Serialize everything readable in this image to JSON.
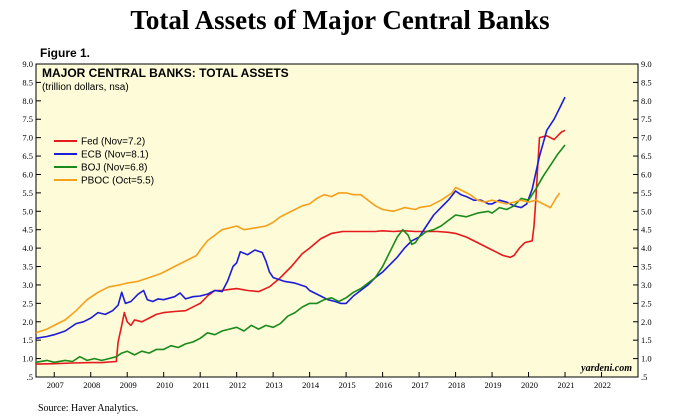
{
  "page": {
    "title": "Total Assets of Major Central Banks",
    "figure_label": "Figure 1.",
    "source": "Source: Haver Analytics."
  },
  "chart_data": {
    "type": "line",
    "title": "MAJOR CENTRAL BANKS: TOTAL ASSETS",
    "subtitle": "(trillion dollars, nsa)",
    "watermark": "yardeni.com",
    "xlabel": "",
    "ylabel": "",
    "x_ticks": [
      "2007",
      "2008",
      "2009",
      "2010",
      "2011",
      "2012",
      "2013",
      "2014",
      "2015",
      "2016",
      "2017",
      "2018",
      "2019",
      "2020",
      "2021",
      "2022"
    ],
    "xlim": [
      2007.0,
      2023.0
    ],
    "y_ticks": [
      ".5",
      "1.0",
      "1.5",
      "2.0",
      "2.5",
      "3.0",
      "3.5",
      "4.0",
      "4.5",
      "5.0",
      "5.5",
      "6.0",
      "6.5",
      "7.0",
      "7.5",
      "8.0",
      "8.5",
      "9.0"
    ],
    "ylim": [
      0.5,
      9.0
    ],
    "legend_position": "left",
    "grid": false,
    "background": "#fdfbd8",
    "series": [
      {
        "name": "Fed (Nov=7.2)",
        "color": "#e41a1c",
        "points": [
          [
            2006.5,
            0.85
          ],
          [
            2007.0,
            0.86
          ],
          [
            2007.5,
            0.88
          ],
          [
            2008.0,
            0.89
          ],
          [
            2008.3,
            0.89
          ],
          [
            2008.7,
            0.92
          ],
          [
            2008.75,
            1.45
          ],
          [
            2008.85,
            1.9
          ],
          [
            2008.92,
            2.25
          ],
          [
            2009.0,
            2.0
          ],
          [
            2009.1,
            1.9
          ],
          [
            2009.2,
            2.05
          ],
          [
            2009.4,
            2.0
          ],
          [
            2009.6,
            2.1
          ],
          [
            2009.8,
            2.2
          ],
          [
            2010.0,
            2.25
          ],
          [
            2010.3,
            2.28
          ],
          [
            2010.6,
            2.3
          ],
          [
            2010.9,
            2.45
          ],
          [
            2011.0,
            2.5
          ],
          [
            2011.2,
            2.7
          ],
          [
            2011.4,
            2.85
          ],
          [
            2011.6,
            2.85
          ],
          [
            2011.8,
            2.88
          ],
          [
            2012.0,
            2.9
          ],
          [
            2012.3,
            2.85
          ],
          [
            2012.6,
            2.82
          ],
          [
            2012.9,
            2.95
          ],
          [
            2013.2,
            3.2
          ],
          [
            2013.5,
            3.5
          ],
          [
            2013.8,
            3.85
          ],
          [
            2014.0,
            4.0
          ],
          [
            2014.3,
            4.25
          ],
          [
            2014.6,
            4.4
          ],
          [
            2014.9,
            4.45
          ],
          [
            2015.2,
            4.45
          ],
          [
            2015.5,
            4.45
          ],
          [
            2015.8,
            4.45
          ],
          [
            2016.0,
            4.47
          ],
          [
            2016.3,
            4.45
          ],
          [
            2016.6,
            4.47
          ],
          [
            2016.9,
            4.45
          ],
          [
            2017.2,
            4.45
          ],
          [
            2017.5,
            4.45
          ],
          [
            2017.8,
            4.43
          ],
          [
            2018.0,
            4.4
          ],
          [
            2018.3,
            4.3
          ],
          [
            2018.6,
            4.15
          ],
          [
            2018.9,
            4.0
          ],
          [
            2019.1,
            3.9
          ],
          [
            2019.3,
            3.8
          ],
          [
            2019.5,
            3.75
          ],
          [
            2019.6,
            3.8
          ],
          [
            2019.75,
            4.0
          ],
          [
            2019.9,
            4.15
          ],
          [
            2020.1,
            4.2
          ],
          [
            2020.15,
            4.6
          ],
          [
            2020.2,
            5.3
          ],
          [
            2020.25,
            6.2
          ],
          [
            2020.3,
            7.0
          ],
          [
            2020.5,
            7.05
          ],
          [
            2020.7,
            6.95
          ],
          [
            2020.9,
            7.15
          ],
          [
            2021.0,
            7.2
          ]
        ]
      },
      {
        "name": "ECB (Nov=8.1)",
        "color": "#1c1cd9",
        "points": [
          [
            2006.5,
            1.55
          ],
          [
            2006.8,
            1.6
          ],
          [
            2007.0,
            1.65
          ],
          [
            2007.3,
            1.75
          ],
          [
            2007.6,
            1.95
          ],
          [
            2007.8,
            2.0
          ],
          [
            2008.0,
            2.1
          ],
          [
            2008.2,
            2.25
          ],
          [
            2008.4,
            2.2
          ],
          [
            2008.6,
            2.3
          ],
          [
            2008.75,
            2.45
          ],
          [
            2008.85,
            2.8
          ],
          [
            2008.95,
            2.5
          ],
          [
            2009.1,
            2.55
          ],
          [
            2009.3,
            2.75
          ],
          [
            2009.45,
            2.85
          ],
          [
            2009.55,
            2.6
          ],
          [
            2009.7,
            2.55
          ],
          [
            2009.85,
            2.62
          ],
          [
            2010.0,
            2.6
          ],
          [
            2010.3,
            2.68
          ],
          [
            2010.45,
            2.78
          ],
          [
            2010.6,
            2.62
          ],
          [
            2010.8,
            2.68
          ],
          [
            2011.0,
            2.7
          ],
          [
            2011.2,
            2.75
          ],
          [
            2011.4,
            2.85
          ],
          [
            2011.6,
            2.82
          ],
          [
            2011.75,
            3.1
          ],
          [
            2011.9,
            3.5
          ],
          [
            2012.0,
            3.6
          ],
          [
            2012.1,
            3.9
          ],
          [
            2012.3,
            3.82
          ],
          [
            2012.5,
            3.95
          ],
          [
            2012.7,
            3.88
          ],
          [
            2012.8,
            3.65
          ],
          [
            2012.9,
            3.35
          ],
          [
            2013.0,
            3.2
          ],
          [
            2013.3,
            3.1
          ],
          [
            2013.6,
            3.05
          ],
          [
            2013.9,
            2.95
          ],
          [
            2014.0,
            2.85
          ],
          [
            2014.3,
            2.7
          ],
          [
            2014.5,
            2.6
          ],
          [
            2014.7,
            2.55
          ],
          [
            2014.85,
            2.5
          ],
          [
            2015.0,
            2.5
          ],
          [
            2015.2,
            2.7
          ],
          [
            2015.4,
            2.85
          ],
          [
            2015.6,
            3.0
          ],
          [
            2015.8,
            3.2
          ],
          [
            2016.0,
            3.35
          ],
          [
            2016.2,
            3.55
          ],
          [
            2016.4,
            3.75
          ],
          [
            2016.6,
            4.0
          ],
          [
            2016.8,
            4.2
          ],
          [
            2017.0,
            4.3
          ],
          [
            2017.2,
            4.6
          ],
          [
            2017.4,
            4.9
          ],
          [
            2017.6,
            5.1
          ],
          [
            2017.8,
            5.3
          ],
          [
            2018.0,
            5.55
          ],
          [
            2018.15,
            5.45
          ],
          [
            2018.3,
            5.4
          ],
          [
            2018.5,
            5.3
          ],
          [
            2018.7,
            5.3
          ],
          [
            2018.9,
            5.2
          ],
          [
            2019.0,
            5.2
          ],
          [
            2019.2,
            5.3
          ],
          [
            2019.4,
            5.25
          ],
          [
            2019.6,
            5.15
          ],
          [
            2019.8,
            5.1
          ],
          [
            2019.95,
            5.2
          ],
          [
            2020.1,
            5.6
          ],
          [
            2020.3,
            6.5
          ],
          [
            2020.5,
            7.2
          ],
          [
            2020.7,
            7.5
          ],
          [
            2020.9,
            7.9
          ],
          [
            2021.0,
            8.1
          ]
        ]
      },
      {
        "name": "BOJ (Nov=6.8)",
        "color": "#1a8a1a",
        "points": [
          [
            2006.5,
            0.9
          ],
          [
            2006.8,
            0.95
          ],
          [
            2007.0,
            0.9
          ],
          [
            2007.3,
            0.95
          ],
          [
            2007.5,
            0.92
          ],
          [
            2007.7,
            1.05
          ],
          [
            2007.9,
            0.95
          ],
          [
            2008.1,
            1.0
          ],
          [
            2008.3,
            0.95
          ],
          [
            2008.5,
            1.0
          ],
          [
            2008.7,
            1.05
          ],
          [
            2008.85,
            1.15
          ],
          [
            2009.0,
            1.2
          ],
          [
            2009.2,
            1.1
          ],
          [
            2009.4,
            1.2
          ],
          [
            2009.6,
            1.15
          ],
          [
            2009.8,
            1.25
          ],
          [
            2010.0,
            1.25
          ],
          [
            2010.2,
            1.35
          ],
          [
            2010.4,
            1.3
          ],
          [
            2010.6,
            1.4
          ],
          [
            2010.8,
            1.45
          ],
          [
            2011.0,
            1.55
          ],
          [
            2011.2,
            1.7
          ],
          [
            2011.4,
            1.65
          ],
          [
            2011.6,
            1.75
          ],
          [
            2011.8,
            1.8
          ],
          [
            2012.0,
            1.85
          ],
          [
            2012.2,
            1.75
          ],
          [
            2012.4,
            1.9
          ],
          [
            2012.6,
            1.8
          ],
          [
            2012.8,
            1.9
          ],
          [
            2013.0,
            1.85
          ],
          [
            2013.2,
            1.95
          ],
          [
            2013.4,
            2.15
          ],
          [
            2013.6,
            2.25
          ],
          [
            2013.8,
            2.4
          ],
          [
            2014.0,
            2.5
          ],
          [
            2014.2,
            2.5
          ],
          [
            2014.4,
            2.6
          ],
          [
            2014.6,
            2.65
          ],
          [
            2014.8,
            2.55
          ],
          [
            2015.0,
            2.65
          ],
          [
            2015.2,
            2.8
          ],
          [
            2015.4,
            2.9
          ],
          [
            2015.6,
            3.05
          ],
          [
            2015.8,
            3.2
          ],
          [
            2016.0,
            3.5
          ],
          [
            2016.2,
            3.9
          ],
          [
            2016.4,
            4.3
          ],
          [
            2016.55,
            4.5
          ],
          [
            2016.7,
            4.35
          ],
          [
            2016.8,
            4.1
          ],
          [
            2016.9,
            4.15
          ],
          [
            2017.0,
            4.3
          ],
          [
            2017.2,
            4.45
          ],
          [
            2017.4,
            4.5
          ],
          [
            2017.6,
            4.6
          ],
          [
            2017.8,
            4.75
          ],
          [
            2018.0,
            4.9
          ],
          [
            2018.3,
            4.85
          ],
          [
            2018.6,
            4.95
          ],
          [
            2018.9,
            5.0
          ],
          [
            2019.0,
            4.95
          ],
          [
            2019.2,
            5.1
          ],
          [
            2019.4,
            5.05
          ],
          [
            2019.6,
            5.15
          ],
          [
            2019.8,
            5.35
          ],
          [
            2020.0,
            5.3
          ],
          [
            2020.2,
            5.6
          ],
          [
            2020.4,
            5.95
          ],
          [
            2020.6,
            6.25
          ],
          [
            2020.8,
            6.55
          ],
          [
            2021.0,
            6.8
          ]
        ]
      },
      {
        "name": "PBOC (Oct=5.5)",
        "color": "#f5a01a",
        "points": [
          [
            2006.5,
            1.7
          ],
          [
            2006.8,
            1.8
          ],
          [
            2007.0,
            1.9
          ],
          [
            2007.3,
            2.05
          ],
          [
            2007.6,
            2.3
          ],
          [
            2007.9,
            2.6
          ],
          [
            2008.2,
            2.8
          ],
          [
            2008.5,
            2.95
          ],
          [
            2008.8,
            3.0
          ],
          [
            2009.0,
            3.05
          ],
          [
            2009.3,
            3.1
          ],
          [
            2009.6,
            3.2
          ],
          [
            2009.9,
            3.3
          ],
          [
            2010.0,
            3.35
          ],
          [
            2010.3,
            3.5
          ],
          [
            2010.6,
            3.65
          ],
          [
            2010.9,
            3.8
          ],
          [
            2011.0,
            3.95
          ],
          [
            2011.2,
            4.2
          ],
          [
            2011.4,
            4.35
          ],
          [
            2011.6,
            4.5
          ],
          [
            2011.8,
            4.55
          ],
          [
            2012.0,
            4.6
          ],
          [
            2012.2,
            4.5
          ],
          [
            2012.5,
            4.55
          ],
          [
            2012.8,
            4.6
          ],
          [
            2013.0,
            4.7
          ],
          [
            2013.2,
            4.85
          ],
          [
            2013.4,
            4.95
          ],
          [
            2013.6,
            5.05
          ],
          [
            2013.8,
            5.15
          ],
          [
            2014.0,
            5.2
          ],
          [
            2014.2,
            5.35
          ],
          [
            2014.4,
            5.45
          ],
          [
            2014.6,
            5.4
          ],
          [
            2014.8,
            5.5
          ],
          [
            2015.0,
            5.5
          ],
          [
            2015.2,
            5.45
          ],
          [
            2015.4,
            5.45
          ],
          [
            2015.6,
            5.3
          ],
          [
            2015.8,
            5.15
          ],
          [
            2016.0,
            5.05
          ],
          [
            2016.3,
            5.0
          ],
          [
            2016.6,
            5.1
          ],
          [
            2016.9,
            5.05
          ],
          [
            2017.0,
            5.1
          ],
          [
            2017.3,
            5.15
          ],
          [
            2017.6,
            5.3
          ],
          [
            2017.9,
            5.5
          ],
          [
            2018.0,
            5.65
          ],
          [
            2018.2,
            5.55
          ],
          [
            2018.4,
            5.45
          ],
          [
            2018.6,
            5.3
          ],
          [
            2018.8,
            5.25
          ],
          [
            2019.0,
            5.3
          ],
          [
            2019.2,
            5.25
          ],
          [
            2019.4,
            5.2
          ],
          [
            2019.6,
            5.25
          ],
          [
            2019.8,
            5.3
          ],
          [
            2020.0,
            5.25
          ],
          [
            2020.2,
            5.3
          ],
          [
            2020.4,
            5.2
          ],
          [
            2020.6,
            5.1
          ],
          [
            2020.75,
            5.35
          ],
          [
            2020.85,
            5.5
          ]
        ]
      }
    ]
  }
}
